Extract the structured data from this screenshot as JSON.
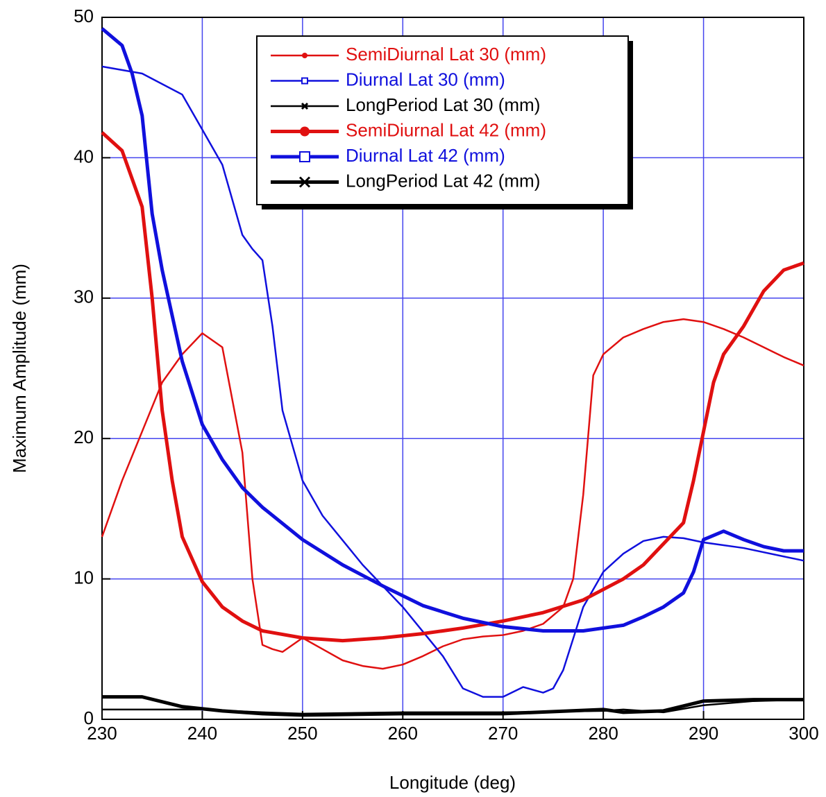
{
  "chart_data": {
    "type": "line",
    "xlabel": "Longitude (deg)",
    "ylabel": "Maximum Amplitude (mm)",
    "xlim": [
      230,
      300
    ],
    "xticks": [
      230,
      240,
      250,
      260,
      270,
      280,
      290,
      300
    ],
    "ylim": [
      0,
      50
    ],
    "yticks": [
      0,
      10,
      20,
      30,
      40,
      50
    ],
    "grid": true,
    "grid_color": "#4444ee",
    "legend": "upper center",
    "series": [
      {
        "name": "SemiDiurnal Lat 30 (mm)",
        "color": "#e01010",
        "width": 2.5,
        "marker": "small",
        "x": [
          230,
          232,
          234,
          236,
          238,
          240,
          242,
          244,
          245,
          246,
          247,
          248,
          250,
          252,
          254,
          256,
          258,
          260,
          262,
          264,
          266,
          268,
          270,
          272,
          274,
          276,
          277,
          278,
          279,
          280,
          282,
          284,
          286,
          288,
          290,
          292,
          294,
          296,
          298,
          300
        ],
        "values": [
          13,
          17,
          20.5,
          24,
          26,
          27.5,
          26.5,
          19,
          10,
          5.3,
          5,
          4.8,
          5.8,
          5,
          4.2,
          3.8,
          3.6,
          3.9,
          4.5,
          5.2,
          5.7,
          5.9,
          6,
          6.3,
          6.8,
          8,
          10,
          16,
          24.5,
          26,
          27.2,
          27.8,
          28.3,
          28.5,
          28.3,
          27.8,
          27.2,
          26.5,
          25.8,
          25.2
        ]
      },
      {
        "name": "Diurnal Lat 30 (mm)",
        "color": "#1010dd",
        "width": 2.5,
        "marker": "small",
        "x": [
          230,
          234,
          238,
          240,
          242,
          244,
          245,
          246,
          247,
          248,
          250,
          252,
          256,
          260,
          264,
          266,
          268,
          270,
          272,
          274,
          275,
          276,
          278,
          280,
          282,
          284,
          286,
          288,
          290,
          294,
          298,
          300
        ],
        "values": [
          46.5,
          46,
          44.5,
          42,
          39.5,
          34.5,
          33.5,
          32.7,
          28,
          22,
          17,
          14.5,
          11,
          8,
          4.5,
          2.2,
          1.6,
          1.6,
          2.3,
          1.9,
          2.2,
          3.5,
          8,
          10.5,
          11.8,
          12.7,
          13,
          12.9,
          12.6,
          12.2,
          11.6,
          11.3
        ]
      },
      {
        "name": "LongPeriod Lat 30 (mm)",
        "color": "#000000",
        "width": 2.5,
        "marker": "small",
        "x": [
          230,
          240,
          246,
          250,
          260,
          270,
          280,
          282,
          286,
          290,
          295,
          300
        ],
        "values": [
          0.7,
          0.7,
          0.5,
          0.4,
          0.5,
          0.5,
          0.6,
          0.7,
          0.5,
          1.0,
          1.3,
          1.4
        ]
      },
      {
        "name": "SemiDiurnal Lat 42 (mm)",
        "color": "#e01010",
        "width": 5,
        "marker": "large",
        "x": [
          230,
          232,
          234,
          235,
          236,
          237,
          238,
          240,
          242,
          244,
          246,
          250,
          254,
          258,
          262,
          266,
          270,
          274,
          278,
          282,
          284,
          286,
          288,
          289,
          290,
          291,
          292,
          294,
          296,
          298,
          300
        ],
        "values": [
          41.8,
          40.5,
          36.5,
          30,
          22,
          17,
          13,
          9.8,
          8,
          7,
          6.3,
          5.8,
          5.6,
          5.8,
          6.1,
          6.5,
          7,
          7.6,
          8.5,
          10,
          11,
          12.5,
          14,
          17,
          20.5,
          24,
          26,
          28,
          30.5,
          32,
          32.5
        ]
      },
      {
        "name": "Diurnal Lat 42 (mm)",
        "color": "#1010dd",
        "width": 5,
        "marker": "large",
        "x": [
          230,
          232,
          233,
          234,
          235,
          236,
          238,
          240,
          242,
          244,
          246,
          250,
          254,
          258,
          262,
          266,
          270,
          274,
          278,
          282,
          284,
          286,
          288,
          289,
          290,
          292,
          294,
          296,
          298,
          300
        ],
        "values": [
          49.2,
          48,
          46,
          43,
          36,
          32,
          25.5,
          21,
          18.5,
          16.5,
          15.1,
          12.8,
          11,
          9.5,
          8.1,
          7.2,
          6.6,
          6.3,
          6.3,
          6.7,
          7.3,
          8,
          9,
          10.5,
          12.8,
          13.4,
          12.8,
          12.3,
          12,
          12
        ]
      },
      {
        "name": "LongPeriod Lat 42 (mm)",
        "color": "#000000",
        "width": 5,
        "marker": "large",
        "x": [
          230,
          234,
          238,
          242,
          246,
          250,
          260,
          270,
          280,
          282,
          286,
          290,
          295,
          300
        ],
        "values": [
          1.6,
          1.6,
          0.9,
          0.6,
          0.4,
          0.3,
          0.4,
          0.4,
          0.7,
          0.5,
          0.6,
          1.3,
          1.4,
          1.4
        ]
      }
    ]
  }
}
